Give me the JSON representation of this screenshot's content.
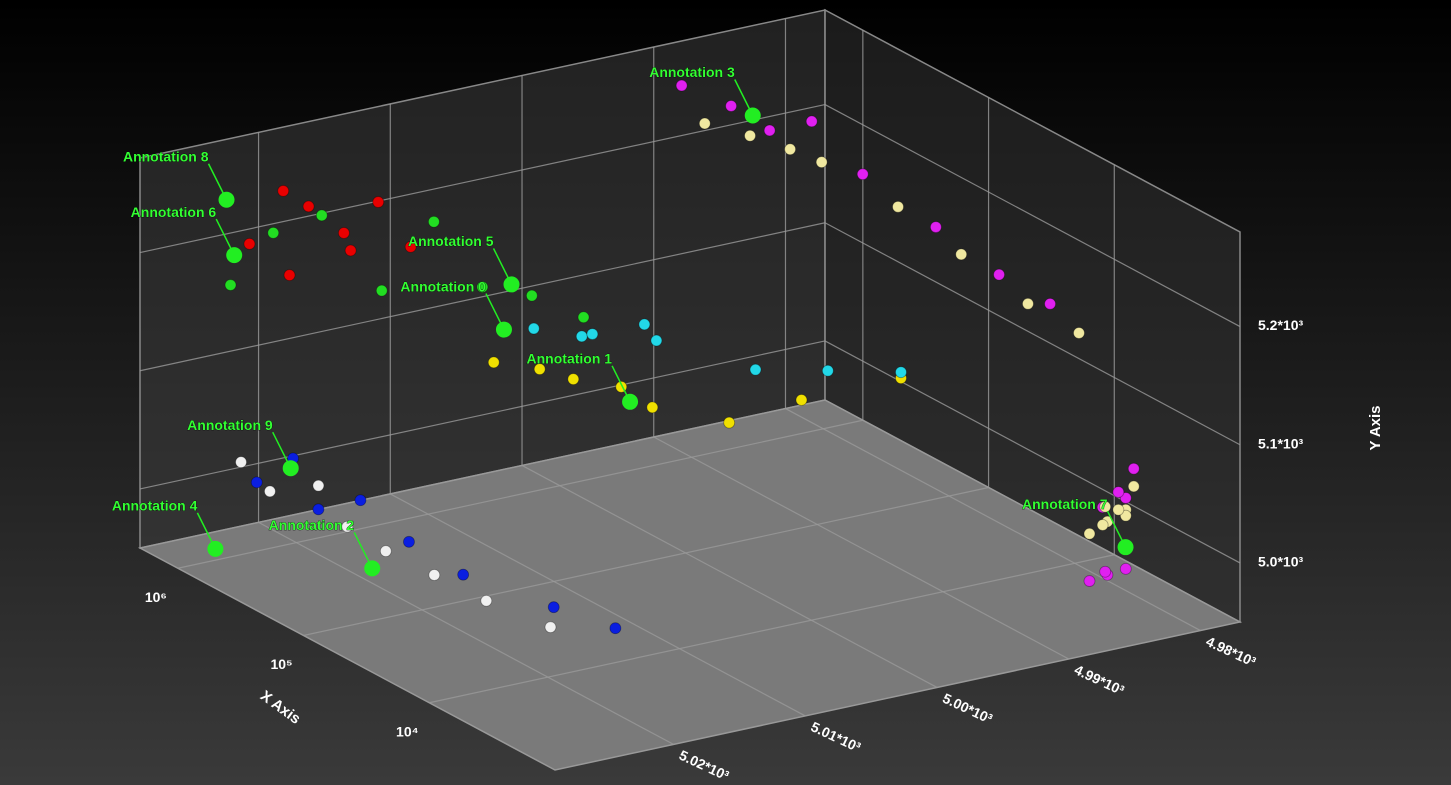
{
  "chart_data": {
    "type": "scatter3d",
    "xlabel": "X Axis",
    "ylabel": "Y Axis",
    "xscale": "log",
    "xlim": [
      2000000,
      1000
    ],
    "xticks": [
      {
        "value": 1000000,
        "label": "10⁶"
      },
      {
        "value": 100000,
        "label": "10⁵"
      },
      {
        "value": 10000,
        "label": "10⁴"
      }
    ],
    "zlim": [
      5029,
      4977
    ],
    "zticks": [
      {
        "value": 5020,
        "label": "5.02*10³"
      },
      {
        "value": 5010,
        "label": "5.01*10³"
      },
      {
        "value": 5000,
        "label": "5.00*10³"
      },
      {
        "value": 4990,
        "label": "4.99*10³"
      },
      {
        "value": 4980,
        "label": "4.98*10³"
      }
    ],
    "ylim": [
      4950,
      5280
    ],
    "yticks": [
      {
        "value": 5000,
        "label": "5.0*10³"
      },
      {
        "value": 5100,
        "label": "5.1*10³"
      },
      {
        "value": 5200,
        "label": "5.2*10³"
      }
    ],
    "grid": true,
    "series": [
      {
        "color": "#22dd22",
        "x": [
          1000000,
          800000,
          700000,
          900000,
          600000,
          500000,
          400000,
          1200000
        ],
        "z": [
          5025,
          5019,
          5015,
          5010,
          5008,
          5005,
          5002,
          5021
        ],
        "y": [
          5180,
          5230,
          5160,
          5200,
          5150,
          5140,
          5120,
          5210
        ]
      },
      {
        "color": "#e80000",
        "x": [
          900000,
          800000,
          1100000,
          700000,
          950000,
          600000,
          850000,
          1000000
        ],
        "z": [
          5024,
          5020,
          5016,
          5022,
          5014,
          5018,
          5012,
          5021
        ],
        "y": [
          5215,
          5240,
          5200,
          5190,
          5225,
          5205,
          5185,
          5250
        ]
      },
      {
        "color": "#f0e000",
        "x": [
          90000,
          80000,
          70000,
          60000,
          55000,
          45000,
          40000,
          35000
        ],
        "z": [
          5015,
          5012,
          5010,
          5007,
          5005,
          5000,
          4995,
          4988
        ],
        "y": [
          5150,
          5140,
          5130,
          5120,
          5100,
          5080,
          5090,
          5095
        ]
      },
      {
        "color": "#22d8e8",
        "x": [
          70000,
          60000,
          80000,
          50000,
          65000,
          45000,
          40000,
          35000
        ],
        "z": [
          5013,
          5010,
          5008,
          5006,
          5004,
          4998,
          4993,
          4988
        ],
        "y": [
          5180,
          5170,
          5160,
          5175,
          5150,
          5120,
          5110,
          5100
        ]
      },
      {
        "color": "#f0e8a0",
        "x": [
          1000000,
          900000,
          700000,
          500000,
          200000,
          80000,
          30000,
          15000
        ],
        "z": [
          4989,
          4986,
          4984,
          4983,
          4981,
          4980,
          4979,
          4978
        ],
        "y": [
          5230,
          5215,
          5205,
          5200,
          5180,
          5160,
          5140,
          5130
        ]
      },
      {
        "color": "#e020f0",
        "x": [
          1200000,
          1000000,
          800000,
          600000,
          300000,
          100000,
          40000,
          20000
        ],
        "z": [
          4990,
          4987,
          4985,
          4983,
          4982,
          4981,
          4980,
          4979
        ],
        "y": [
          5260,
          5240,
          5220,
          5230,
          5200,
          5180,
          5160,
          5150
        ]
      },
      {
        "color": "#f0f0f0",
        "x": [
          400000,
          300000,
          200000,
          150000,
          120000,
          80000,
          50000,
          25000
        ],
        "z": [
          5028,
          5027,
          5025,
          5024,
          5022,
          5020,
          5018,
          5016
        ],
        "y": [
          5060,
          5040,
          5050,
          5020,
          5000,
          4985,
          4970,
          4960
        ]
      },
      {
        "color": "#0a1ee0",
        "x": [
          300000,
          250000,
          200000,
          150000,
          100000,
          60000,
          30000,
          20000
        ],
        "z": [
          5028,
          5026,
          5025,
          5023,
          5021,
          5019,
          5015,
          5012
        ],
        "y": [
          5050,
          5070,
          5030,
          5040,
          5010,
          4990,
          4970,
          4955
        ]
      },
      {
        "color": "#e020f0",
        "x": [
          6000,
          5500,
          5000,
          4500,
          6000,
          5000,
          4500,
          5500
        ],
        "z": [
          4981,
          4980,
          4979,
          4981,
          4980,
          4979,
          4980,
          4978
        ],
        "y": [
          4950,
          4955,
          4960,
          4965,
          5010,
          5020,
          5030,
          5040
        ]
      },
      {
        "color": "#f0e8a0",
        "x": [
          6000,
          5500,
          5000,
          4500,
          6000,
          5000,
          4500,
          5500
        ],
        "z": [
          4981,
          4980,
          4979,
          4981,
          4980,
          4979,
          4980,
          4978
        ],
        "y": [
          4990,
          5000,
          5010,
          5020,
          4995,
          5005,
          5015,
          5025
        ]
      }
    ],
    "annotation_color": "#22ee22",
    "annotations": [
      {
        "text": "Annotation 0",
        "x": 95000,
        "y": 5174,
        "z": 5014
      },
      {
        "text": "Annotation 1",
        "x": 65000,
        "y": 5103,
        "z": 5006
      },
      {
        "text": "Annotation 2",
        "x": 95000,
        "y": 4996,
        "z": 5024
      },
      {
        "text": "Annotation 3",
        "x": 1090000,
        "y": 5225,
        "z": 4985
      },
      {
        "text": "Annotation 4",
        "x": 640000,
        "y": 4975,
        "z": 5028
      },
      {
        "text": "Annotation 5",
        "x": 65000,
        "y": 5224,
        "z": 5015
      },
      {
        "text": "Annotation 6",
        "x": 935000,
        "y": 5207,
        "z": 5025
      },
      {
        "text": "Annotation 7",
        "x": 3100,
        "y": 4995,
        "z": 4981
      },
      {
        "text": "Annotation 8",
        "x": 1370000,
        "y": 5242,
        "z": 5024
      },
      {
        "text": "Annotation 9",
        "x": 205000,
        "y": 5069,
        "z": 5027
      }
    ]
  }
}
